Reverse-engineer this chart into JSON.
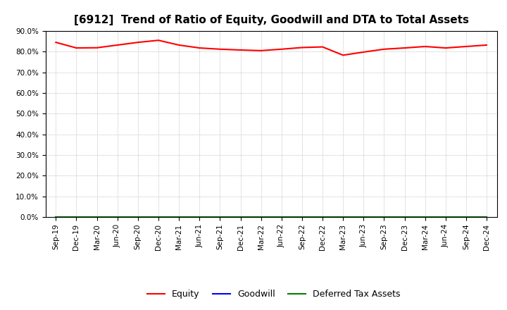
{
  "title": "[6912]  Trend of Ratio of Equity, Goodwill and DTA to Total Assets",
  "x_labels": [
    "Sep-19",
    "Dec-19",
    "Mar-20",
    "Jun-20",
    "Sep-20",
    "Dec-20",
    "Mar-21",
    "Jun-21",
    "Sep-21",
    "Dec-21",
    "Mar-22",
    "Jun-22",
    "Sep-22",
    "Dec-22",
    "Mar-23",
    "Jun-23",
    "Sep-23",
    "Dec-23",
    "Mar-24",
    "Jun-24",
    "Sep-24",
    "Dec-24"
  ],
  "equity": [
    84.5,
    81.8,
    81.9,
    83.2,
    84.5,
    85.5,
    83.2,
    81.8,
    81.2,
    80.8,
    80.5,
    81.2,
    82.0,
    82.3,
    78.3,
    79.8,
    81.2,
    81.8,
    82.5,
    81.8,
    82.5,
    83.2
  ],
  "goodwill": [
    0.0,
    0.0,
    0.0,
    0.0,
    0.0,
    0.0,
    0.0,
    0.0,
    0.0,
    0.0,
    0.0,
    0.0,
    0.0,
    0.0,
    0.0,
    0.0,
    0.0,
    0.0,
    0.0,
    0.0,
    0.0,
    0.0
  ],
  "dta": [
    0.0,
    0.0,
    0.0,
    0.0,
    0.0,
    0.0,
    0.0,
    0.0,
    0.0,
    0.0,
    0.0,
    0.0,
    0.0,
    0.0,
    0.0,
    0.0,
    0.0,
    0.0,
    0.0,
    0.0,
    0.0,
    0.0
  ],
  "equity_color": "#ff0000",
  "goodwill_color": "#0000ff",
  "dta_color": "#008000",
  "ylim": [
    0,
    90
  ],
  "yticks": [
    0,
    10,
    20,
    30,
    40,
    50,
    60,
    70,
    80,
    90
  ],
  "ytick_labels": [
    "0.0%",
    "10.0%",
    "20.0%",
    "30.0%",
    "40.0%",
    "50.0%",
    "60.0%",
    "70.0%",
    "80.0%",
    "90.0%"
  ],
  "background_color": "#ffffff",
  "grid_color": "#aaaaaa",
  "title_fontsize": 11,
  "tick_fontsize": 7.5,
  "legend_items": [
    "Equity",
    "Goodwill",
    "Deferred Tax Assets"
  ],
  "line_width": 1.5
}
